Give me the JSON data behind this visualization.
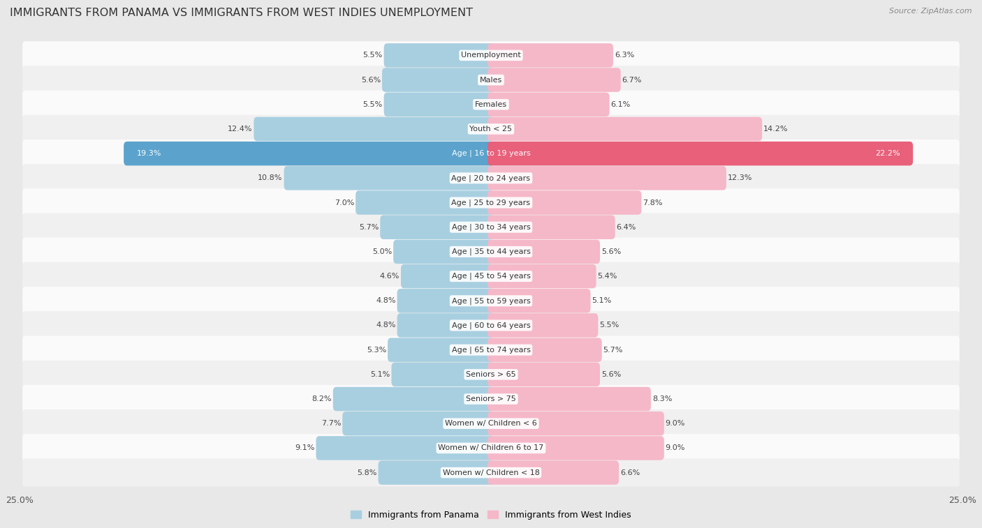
{
  "title": "IMMIGRANTS FROM PANAMA VS IMMIGRANTS FROM WEST INDIES UNEMPLOYMENT",
  "source": "Source: ZipAtlas.com",
  "categories": [
    "Unemployment",
    "Males",
    "Females",
    "Youth < 25",
    "Age | 16 to 19 years",
    "Age | 20 to 24 years",
    "Age | 25 to 29 years",
    "Age | 30 to 34 years",
    "Age | 35 to 44 years",
    "Age | 45 to 54 years",
    "Age | 55 to 59 years",
    "Age | 60 to 64 years",
    "Age | 65 to 74 years",
    "Seniors > 65",
    "Seniors > 75",
    "Women w/ Children < 6",
    "Women w/ Children 6 to 17",
    "Women w/ Children < 18"
  ],
  "panama_values": [
    5.5,
    5.6,
    5.5,
    12.4,
    19.3,
    10.8,
    7.0,
    5.7,
    5.0,
    4.6,
    4.8,
    4.8,
    5.3,
    5.1,
    8.2,
    7.7,
    9.1,
    5.8
  ],
  "westindies_values": [
    6.3,
    6.7,
    6.1,
    14.2,
    22.2,
    12.3,
    7.8,
    6.4,
    5.6,
    5.4,
    5.1,
    5.5,
    5.7,
    5.6,
    8.3,
    9.0,
    9.0,
    6.6
  ],
  "panama_color": "#a8cfe0",
  "westindies_color": "#f5b8c8",
  "highlight_panama_color": "#5ba3cc",
  "highlight_westindies_color": "#e8607a",
  "background_color": "#e8e8e8",
  "row_bg_odd": "#f0f0f0",
  "row_bg_even": "#fafafa",
  "xlim": 25.0,
  "legend_panama": "Immigrants from Panama",
  "legend_westindies": "Immigrants from West Indies",
  "highlight_idx": 4
}
